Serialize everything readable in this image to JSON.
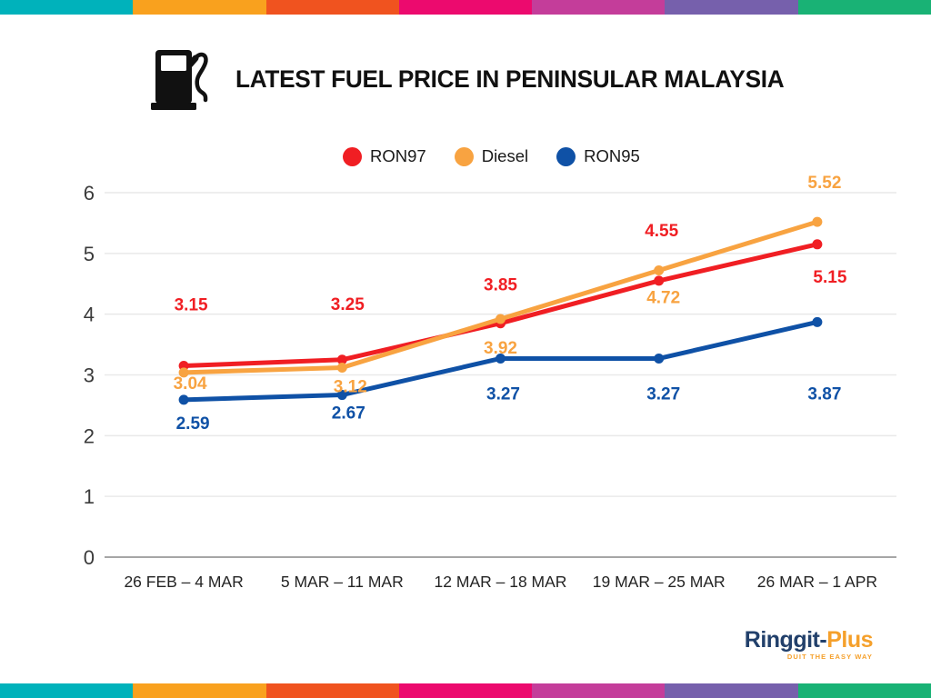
{
  "top_bar": {
    "colors": [
      "#00B2BB",
      "#F9A11E",
      "#F0531F",
      "#EC0A6E",
      "#C43D9A",
      "#7660AC",
      "#19B275"
    ]
  },
  "bottom_bar": {
    "colors": [
      "#00B2BB",
      "#F9A11E",
      "#F0531F",
      "#EC0A6E",
      "#C43D9A",
      "#7660AC",
      "#19B275"
    ]
  },
  "header": {
    "title": "LATEST FUEL PRICE IN PENINSULAR MALAYSIA"
  },
  "chart_data": {
    "type": "line",
    "title": "LATEST FUEL PRICE IN PENINSULAR MALAYSIA",
    "categories": [
      "26 FEB – 4 MAR",
      "5 MAR – 11 MAR",
      "12 MAR – 18 MAR",
      "19 MAR – 25 MAR",
      "26 MAR – 1 APR"
    ],
    "series": [
      {
        "name": "RON97",
        "color": "#F01E23",
        "values": [
          3.15,
          3.25,
          3.85,
          4.55,
          5.15
        ],
        "label_offsets": [
          [
            8,
            -61
          ],
          [
            6,
            -55
          ],
          [
            0,
            -36
          ],
          [
            3,
            -49
          ],
          [
            14,
            42
          ]
        ]
      },
      {
        "name": "Diesel",
        "color": "#F8A341",
        "values": [
          3.04,
          3.12,
          3.92,
          4.72,
          5.52
        ],
        "label_offsets": [
          [
            7,
            18
          ],
          [
            9,
            27
          ],
          [
            0,
            38
          ],
          [
            5,
            36
          ],
          [
            8,
            -37
          ]
        ]
      },
      {
        "name": "RON95",
        "color": "#0F51A6",
        "values": [
          2.59,
          2.67,
          3.27,
          3.27,
          3.87
        ],
        "label_offsets": [
          [
            10,
            32
          ],
          [
            7,
            26
          ],
          [
            3,
            45
          ],
          [
            5,
            45
          ],
          [
            8,
            85
          ]
        ]
      }
    ],
    "ylim": [
      0,
      6
    ],
    "yticks": [
      0,
      1,
      2,
      3,
      4,
      5,
      6
    ],
    "xlabel": "",
    "ylabel": "",
    "grid": "horizontal",
    "legend_position": "top-center",
    "grid_color": "#E9E9E9",
    "axis_color": "#A6A6A6",
    "tick_label_color": "#3A3A3A",
    "x_label_color": "#232323"
  },
  "logo": {
    "brand_part1": "Ringgit",
    "brand_separator": "-",
    "brand_part2": "Plus",
    "tagline": "DUIT THE EASY WAY",
    "navy": "#22406B",
    "orange": "#F5A02B"
  }
}
